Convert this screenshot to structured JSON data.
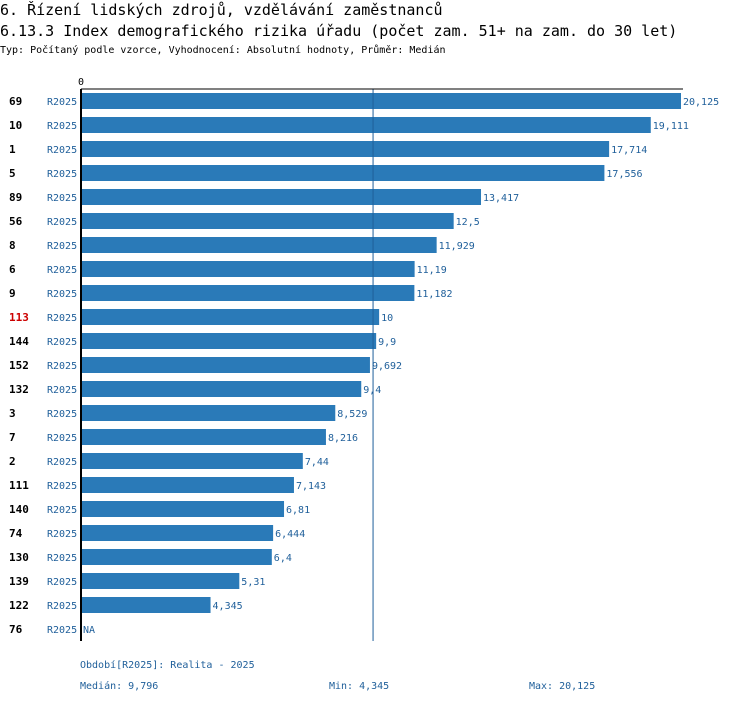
{
  "header": {
    "title": "6. Řízení lidských zdrojů, vzdělávání zaměstnanců",
    "subtitle": "6.13.3 Index demografického rizika úřadu (počet zam. 51+ na zam. do 30 let)",
    "info": "Typ: Počítaný podle vzorce, Vyhodnocení: Absolutní hodnoty, Průměr: Medián"
  },
  "chart_data": {
    "type": "bar",
    "orientation": "horizontal",
    "x_tick_label": "0",
    "xlim": [
      0,
      20.125
    ],
    "median": 9.796,
    "categories": [
      "69",
      "10",
      "1",
      "5",
      "89",
      "56",
      "8",
      "6",
      "9",
      "113",
      "144",
      "152",
      "132",
      "3",
      "7",
      "2",
      "111",
      "140",
      "74",
      "130",
      "139",
      "122",
      "76"
    ],
    "series_labels": [
      "R2025",
      "R2025",
      "R2025",
      "R2025",
      "R2025",
      "R2025",
      "R2025",
      "R2025",
      "R2025",
      "R2025",
      "R2025",
      "R2025",
      "R2025",
      "R2025",
      "R2025",
      "R2025",
      "R2025",
      "R2025",
      "R2025",
      "R2025",
      "R2025",
      "R2025",
      "R2025"
    ],
    "values": [
      20.125,
      19.111,
      17.714,
      17.556,
      13.417,
      12.5,
      11.929,
      11.19,
      11.182,
      10,
      9.9,
      9.692,
      9.4,
      8.529,
      8.216,
      7.44,
      7.143,
      6.81,
      6.444,
      6.4,
      5.31,
      4.345,
      null
    ],
    "value_labels": [
      "20,125",
      "19,111",
      "17,714",
      "17,556",
      "13,417",
      "12,5",
      "11,929",
      "11,19",
      "11,182",
      "10",
      "9,9",
      "9,692",
      "9,4",
      "8,529",
      "8,216",
      "7,44",
      "7,143",
      "6,81",
      "6,444",
      "6,4",
      "5,31",
      "4,345",
      "NA"
    ],
    "highlight_category": "113",
    "colors": {
      "bar": "#2a7ab8",
      "label": "#1f5f9a",
      "highlight": "#cc0000",
      "axis": "#000000"
    }
  },
  "footer": {
    "period": "Období[R2025]: Realita - 2025",
    "median": "Medián: 9,796",
    "min": "Min: 4,345",
    "max": "Max: 20,125"
  }
}
